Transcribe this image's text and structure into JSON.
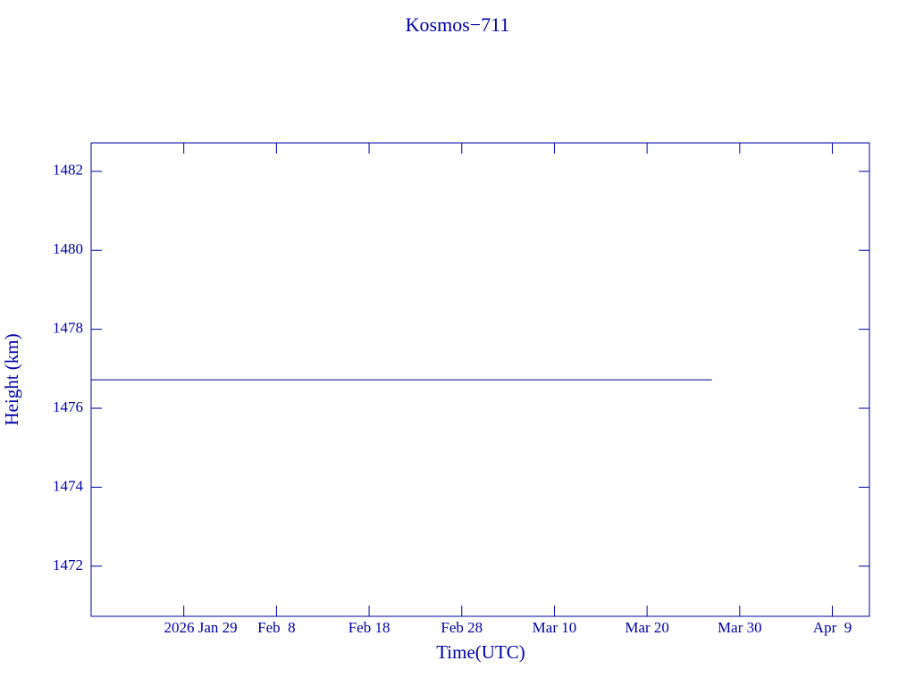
{
  "chart_data": {
    "type": "line",
    "title": "Kosmos−711",
    "x_label": "Time(UTC)",
    "y_label": "Height (km)",
    "x": [
      "2026-01-19",
      "2026-03-27"
    ],
    "series": [
      {
        "name": "Height",
        "color": "#000080",
        "values": [
          1476.72,
          1476.72
        ]
      }
    ],
    "xlim": [
      "2026-01-19",
      "2026-04-13"
    ],
    "xticks": [
      {
        "value": "2026-01-29",
        "label": "2026 Jan 29"
      },
      {
        "value": "2026-02-08",
        "label": "Feb  8"
      },
      {
        "value": "2026-02-18",
        "label": "Feb 18"
      },
      {
        "value": "2026-02-28",
        "label": "Feb 28"
      },
      {
        "value": "2026-03-10",
        "label": "Mar 10"
      },
      {
        "value": "2026-03-20",
        "label": "Mar 20"
      },
      {
        "value": "2026-03-30",
        "label": "Mar 30"
      },
      {
        "value": "2026-04-09",
        "label": "Apr  9"
      }
    ],
    "ylim": [
      1470.73,
      1482.72
    ],
    "yticks": [
      1472,
      1474,
      1476,
      1478,
      1480,
      1482
    ],
    "axis_color": "#0000a8"
  }
}
